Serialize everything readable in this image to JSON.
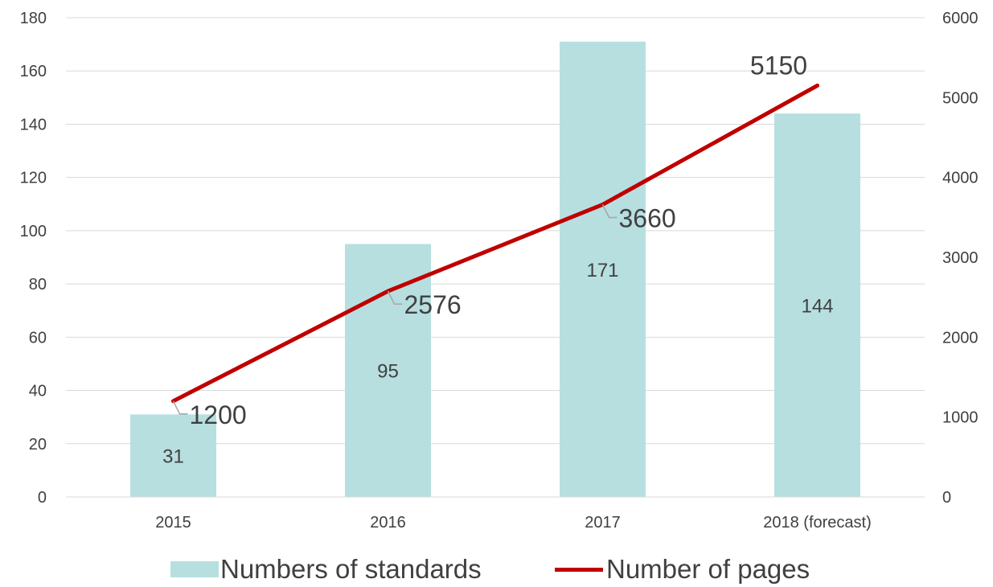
{
  "chart_data": {
    "type": "bar",
    "categories": [
      "2015",
      "2016",
      "2017",
      "2018 (forecast)"
    ],
    "series": [
      {
        "name": "Numbers of standards",
        "type": "bar",
        "axis": "left",
        "values": [
          31,
          95,
          171,
          144
        ],
        "color": "#b7dfe0"
      },
      {
        "name": "Number of pages",
        "type": "line",
        "axis": "right",
        "values": [
          1200,
          2576,
          3660,
          5150
        ],
        "color": "#c00000"
      }
    ],
    "y_left": {
      "ylim": [
        0,
        180
      ],
      "ticks": [
        "0",
        "20",
        "40",
        "60",
        "80",
        "100",
        "120",
        "140",
        "160",
        "180"
      ]
    },
    "y_right": {
      "ylim": [
        0,
        6000
      ],
      "ticks": [
        "0",
        "1000",
        "2000",
        "3000",
        "4000",
        "5000",
        "6000"
      ]
    },
    "grid": true,
    "legend_position": "bottom",
    "title": "",
    "xlabel": "",
    "ylabel": ""
  }
}
